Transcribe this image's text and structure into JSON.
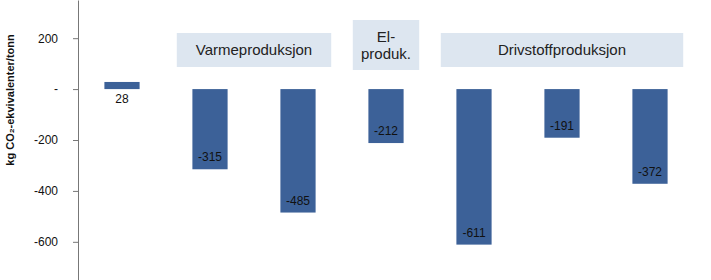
{
  "chart_data": {
    "type": "bar",
    "y_label": "kg CO₂-ekvivalenter/tonn",
    "categories": [
      null,
      null,
      null,
      null,
      null,
      null,
      null
    ],
    "values": [
      28,
      -315,
      -485,
      -212,
      -611,
      -191,
      -372
    ],
    "color": "#3c6198",
    "ylim": [
      -750,
      350
    ],
    "yticks": [
      200,
      {
        "value": 0,
        "label": "-"
      },
      -200,
      -400,
      -600
    ],
    "data_labels": true,
    "grid": false,
    "annotations": [
      "Varmeproduksjon",
      "El-\nproduk.",
      "Drivstoffproduksjon"
    ]
  }
}
